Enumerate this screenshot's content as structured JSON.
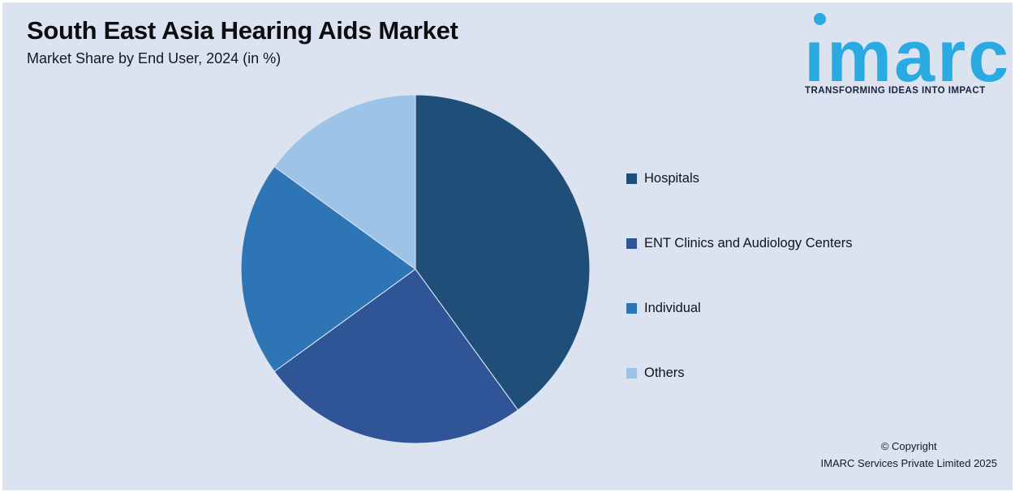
{
  "page": {
    "background": "#dbe3f1",
    "frame": "#ffffff"
  },
  "header": {
    "title": "South East Asia Hearing Aids Market",
    "subtitle": "Market Share by End User, 2024 (in %)"
  },
  "logo": {
    "wordmark": "ımarc",
    "wordmark_text": "imarc",
    "tagline": "TRANSFORMING IDEAS INTO IMPACT",
    "brand_color": "#29ABE2",
    "tagline_color": "#1b2340"
  },
  "chart_data": {
    "type": "pie",
    "title": "South East Asia Hearing Aids Market",
    "subtitle": "Market Share by End User, 2024 (in %)",
    "unit": "%",
    "categories": [
      "Hospitals",
      "ENT Clinics and Audiology Centers",
      "Individual",
      "Others"
    ],
    "values": [
      40,
      25,
      20,
      15
    ],
    "colors": [
      "#1F4E79",
      "#2F5597",
      "#2E75B6",
      "#9DC3E6"
    ],
    "start_angle_deg": 0,
    "direction": "clockwise",
    "legend_position": "right",
    "data_labels_shown": false
  },
  "legend": {
    "items": [
      {
        "label": "Hospitals",
        "color": "#1F4E79"
      },
      {
        "label": "ENT Clinics and Audiology Centers",
        "color": "#2F5597"
      },
      {
        "label": "Individual",
        "color": "#2E75B6"
      },
      {
        "label": "Others",
        "color": "#9DC3E6"
      }
    ]
  },
  "footer": {
    "copyright_line1": "© Copyright",
    "copyright_line2": "IMARC Services Private Limited 2025"
  }
}
